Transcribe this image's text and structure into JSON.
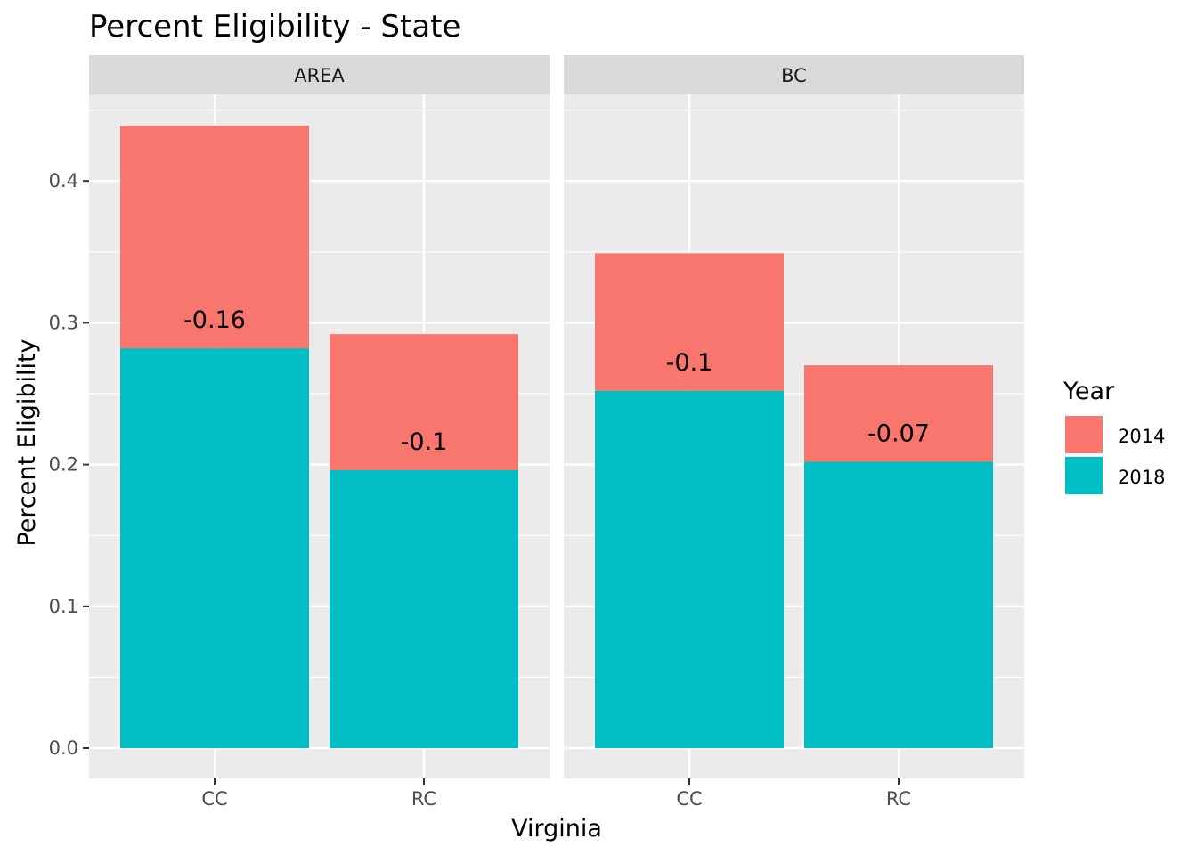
{
  "chart_data": {
    "type": "bar",
    "stacked": true,
    "title": "Percent Eligibility - State",
    "xlabel": "Virginia",
    "ylabel": "Percent Eligibility",
    "ylim": [
      0,
      0.46
    ],
    "y_ticks": [
      0.0,
      0.1,
      0.2,
      0.3,
      0.4
    ],
    "y_tick_labels": [
      "0.0",
      "0.1",
      "0.2",
      "0.3",
      "0.4"
    ],
    "grid": true,
    "legend": {
      "title": "Year",
      "placement": "right",
      "entries": [
        "2014",
        "2018"
      ]
    },
    "colors": {
      "2014": "#F8766D",
      "2018": "#00BFC4",
      "panel_bg": "#EBEBEB",
      "strip_bg": "#D9D9D9",
      "grid": "#FFFFFF"
    },
    "categories": [
      "CC",
      "RC"
    ],
    "facets": [
      {
        "name": "AREA",
        "bars": [
          {
            "category": "CC",
            "v2018": 0.282,
            "v2014": 0.157,
            "label": "-0.16",
            "label_y": 0.302
          },
          {
            "category": "RC",
            "v2018": 0.196,
            "v2014": 0.096,
            "label": "-0.1",
            "label_y": 0.216
          }
        ]
      },
      {
        "name": "BC",
        "bars": [
          {
            "category": "CC",
            "v2018": 0.252,
            "v2014": 0.097,
            "label": "-0.1",
            "label_y": 0.272
          },
          {
            "category": "RC",
            "v2018": 0.202,
            "v2014": 0.068,
            "label": "-0.07",
            "label_y": 0.222
          }
        ]
      }
    ]
  }
}
